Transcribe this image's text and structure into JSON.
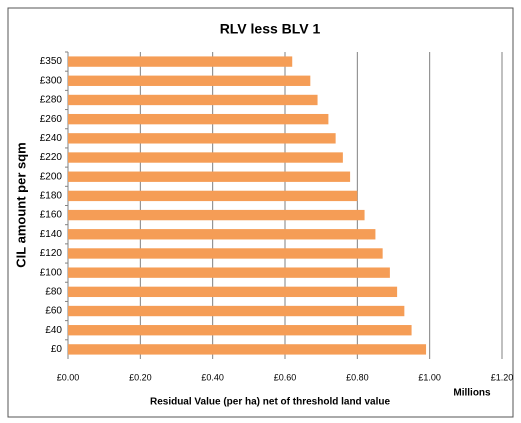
{
  "chart_data": {
    "type": "bar",
    "orientation": "horizontal",
    "title": "RLV less BLV 1",
    "x_label": "Residual Value (per ha) net of threshold land value",
    "x_unit_label": "Millions",
    "y_label": "CIL amount per sqm",
    "categories": [
      "£350",
      "£300",
      "£280",
      "£260",
      "£240",
      "£220",
      "£200",
      "£180",
      "£160",
      "£140",
      "£120",
      "£100",
      "£80",
      "£60",
      "£40",
      "£0"
    ],
    "values": [
      0.62,
      0.67,
      0.69,
      0.72,
      0.74,
      0.76,
      0.78,
      0.8,
      0.82,
      0.85,
      0.87,
      0.89,
      0.91,
      0.93,
      0.95,
      0.99
    ],
    "color": "#f59d56",
    "xlim": [
      0,
      1.2
    ],
    "xticks": [
      {
        "value": 0,
        "label": "£0.00"
      },
      {
        "value": 0.2,
        "label": "£0.20"
      },
      {
        "value": 0.4,
        "label": "£0.40"
      },
      {
        "value": 0.6,
        "label": "£0.60"
      },
      {
        "value": 0.8,
        "label": "£0.80"
      },
      {
        "value": 1.0,
        "label": "£1.00"
      },
      {
        "value": 1.2,
        "label": "£1.20"
      }
    ],
    "grid": true
  }
}
